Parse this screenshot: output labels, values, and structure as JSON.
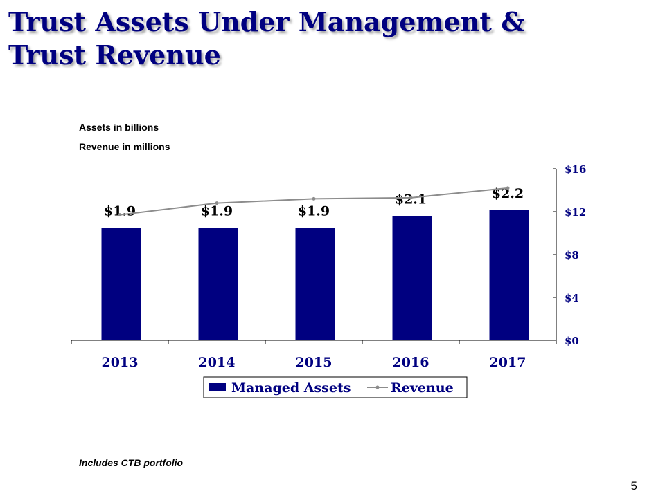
{
  "slide": {
    "title_line1": "Trust Assets Under Management &",
    "title_line2": "Trust Revenue",
    "note_assets": "Assets in billions",
    "note_revenue": "Revenue in millions",
    "footnote": "Includes CTB portfolio",
    "page_number": "5"
  },
  "colors": {
    "title": "#000080",
    "bars": "#000080",
    "revenue_line": "#8c8c8c"
  },
  "chart_data": {
    "type": "bar",
    "categories": [
      "2013",
      "2014",
      "2015",
      "2016",
      "2017"
    ],
    "series": [
      {
        "name": "Managed Assets",
        "type": "bar",
        "axis": "left",
        "values": [
          1.9,
          1.9,
          1.9,
          2.1,
          2.2
        ],
        "labels": [
          "$1.9",
          "$1.9",
          "$1.9",
          "$2.1",
          "$2.2"
        ]
      },
      {
        "name": "Revenue",
        "type": "line",
        "axis": "right",
        "values": [
          11.7,
          12.8,
          13.2,
          13.3,
          14.2
        ]
      }
    ],
    "left_axis": {
      "range": [
        0,
        2.9
      ],
      "visible": false
    },
    "right_axis": {
      "range": [
        0,
        16
      ],
      "ticks": [
        "$0",
        "$4",
        "$8",
        "$12",
        "$16"
      ]
    },
    "grid": false,
    "legend_position": "bottom"
  }
}
